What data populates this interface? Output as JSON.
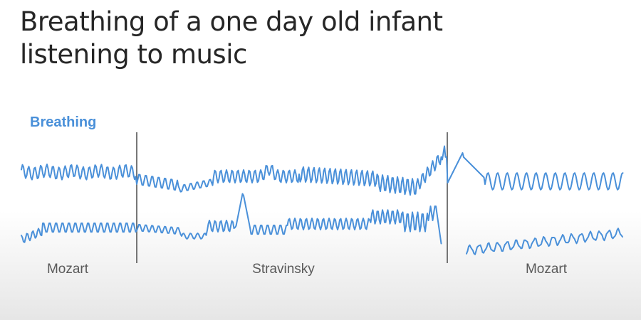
{
  "slide": {
    "title": "Breathing of a one day old infant listening to music"
  },
  "chart_data": {
    "type": "line",
    "title": "Breathing of a one day old infant listening to music",
    "series_label": "Breathing",
    "segments": [
      "Mozart",
      "Stravinsky",
      "Mozart"
    ],
    "series": [
      {
        "name": "Breathing"
      },
      {
        "name": "Breathing"
      }
    ],
    "note": "Two breathing traces across three music segments (Mozart, Stravinsky, Mozart); waveform amplitude is qualitative with no numeric axis.",
    "colors": {
      "trace": "#4a90d9",
      "divider": "#555555",
      "label": "#5a5a5a"
    }
  }
}
